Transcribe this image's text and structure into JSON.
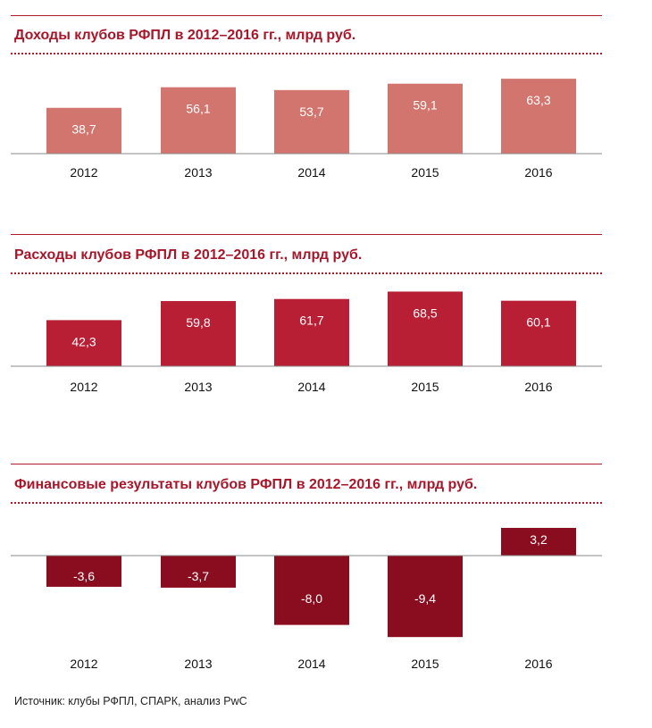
{
  "chart_data": [
    {
      "type": "bar",
      "title": "Доходы клубов РФПЛ в 2012–2016 гг., млрд руб.",
      "categories": [
        "2012",
        "2013",
        "2014",
        "2015",
        "2016"
      ],
      "values": [
        38.7,
        56.1,
        53.7,
        59.1,
        63.3
      ],
      "value_labels": [
        "38,7",
        "56,1",
        "53,7",
        "59,1",
        "63,3"
      ],
      "xlabel": "",
      "ylabel": "",
      "color": "#d2756e"
    },
    {
      "type": "bar",
      "title": "Расходы клубов РФПЛ в 2012–2016 гг., млрд руб.",
      "categories": [
        "2012",
        "2013",
        "2014",
        "2015",
        "2016"
      ],
      "values": [
        42.3,
        59.8,
        61.7,
        68.5,
        60.1
      ],
      "value_labels": [
        "42,3",
        "59,8",
        "61,7",
        "68,5",
        "60,1"
      ],
      "xlabel": "",
      "ylabel": "",
      "color": "#b81f35"
    },
    {
      "type": "bar",
      "title": "Финансовые результаты клубов РФПЛ в 2012–2016 гг., млрд руб.",
      "categories": [
        "2012",
        "2013",
        "2014",
        "2015",
        "2016"
      ],
      "values": [
        -3.6,
        -3.7,
        -8.0,
        -9.4,
        3.2
      ],
      "value_labels": [
        "-3,6",
        "-3,7",
        "-8,0",
        "-9,4",
        "3,2"
      ],
      "xlabel": "",
      "ylabel": "",
      "color": "#8a0d1f"
    }
  ],
  "source": "Источник: клубы РФПЛ, СПАРК, анализ PwC"
}
